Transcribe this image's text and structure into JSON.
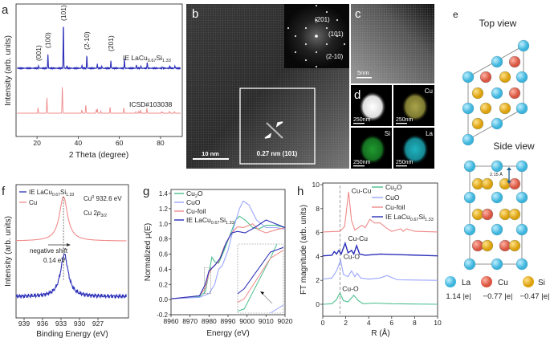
{
  "panel_labels": {
    "a": "a",
    "b": "b",
    "c": "c",
    "d": "d",
    "e": "e",
    "f": "f",
    "g": "g",
    "h": "h"
  },
  "material": {
    "base": "IE LaCu",
    "sub1": "0.67",
    "mid": "Si",
    "sub2": "1.33"
  },
  "colors": {
    "blue": "#2b2fb8",
    "red": "#f08a8a",
    "green": "#4cbf8f",
    "lightblue": "#9aa6ff",
    "la": "#5cc8e8",
    "cu": "#e8705e",
    "si": "#f0b822"
  },
  "panel_b": {
    "scale_bar": "10 nm",
    "d_spacing": "0.27 nm (101)",
    "fft_labels": [
      "(201)",
      "(101)",
      "(2-10)"
    ]
  },
  "panel_c": {
    "scale_bar": "5nm"
  },
  "panel_d": {
    "tiles": [
      {
        "element": "",
        "scale": "250nm"
      },
      {
        "element": "Cu",
        "scale": "250nm"
      },
      {
        "element": "Si",
        "scale": "250nm"
      },
      {
        "element": "La",
        "scale": "250nm"
      }
    ]
  },
  "panel_e": {
    "top_view": "Top view",
    "side_view": "Side view",
    "distance": "2.15 Å",
    "legend": [
      {
        "element": "La",
        "charge": "1.14 |e|"
      },
      {
        "element": "Cu",
        "charge": "−0.77 |e|"
      },
      {
        "element": "Si",
        "charge": "−0.47 |e|"
      }
    ]
  },
  "chart_data": [
    {
      "id": "a",
      "type": "line",
      "xlabel": "2 Theta (degree)",
      "ylabel": "Intensity (arb. units)",
      "xlim": [
        10,
        90
      ],
      "xticks": [
        20,
        40,
        60,
        80
      ],
      "series": [
        {
          "name": "IE LaCu0.67Si1.33",
          "color": "#2b2fb8",
          "peaks": [
            [
              20.8,
              5
            ],
            [
              25.3,
              30
            ],
            [
              32.8,
              100
            ],
            [
              34.5,
              5
            ],
            [
              41.8,
              6
            ],
            [
              44.2,
              28
            ],
            [
              49.3,
              9
            ],
            [
              51.5,
              4
            ],
            [
              55.9,
              16
            ],
            [
              62.5,
              20
            ],
            [
              68.3,
              7
            ],
            [
              70.5,
              5
            ],
            [
              73.6,
              13
            ],
            [
              81,
              3
            ],
            [
              84.5,
              5
            ],
            [
              87,
              5
            ]
          ]
        },
        {
          "name": "ICSD#103038",
          "color": "#f08a8a",
          "peaks": [
            [
              20.5,
              20
            ],
            [
              24.8,
              57
            ],
            [
              32.3,
              100
            ],
            [
              41.8,
              12
            ],
            [
              43.7,
              30
            ],
            [
              48.8,
              13
            ],
            [
              49.3,
              16
            ],
            [
              51,
              8
            ],
            [
              55.5,
              23
            ],
            [
              62.2,
              20
            ],
            [
              68,
              6
            ],
            [
              69.5,
              8
            ],
            [
              70.4,
              10
            ],
            [
              73.4,
              18
            ],
            [
              80.5,
              5
            ],
            [
              81,
              4
            ],
            [
              84.3,
              7
            ],
            [
              86.8,
              6
            ]
          ]
        }
      ],
      "annotations": [
        "(001)",
        "(100)",
        "(101)",
        "(2-10)",
        "(201)"
      ],
      "annotation_x": [
        20.8,
        25.3,
        32.8,
        44.2,
        55.9
      ],
      "legend_icsd": "ICSD#103038"
    },
    {
      "id": "f",
      "type": "line",
      "xlabel": "Binding Energy (eV)",
      "ylabel": "Intensity (arb. units)",
      "xlim": [
        940.3,
        922.3
      ],
      "xticks": [
        939,
        936,
        933,
        930,
        927
      ],
      "ylim": [
        0,
        3
      ],
      "series": [
        {
          "name": "IE LaCu0.67Si1.33",
          "color": "#2b2fb8",
          "center": 932.46,
          "hwhm": 0.75,
          "baseline": 0.48,
          "amplitude": 0.95,
          "noisy": true
        },
        {
          "name": "Cu",
          "color": "#f08a8a",
          "center": 932.6,
          "hwhm": 0.8,
          "baseline": 1.73,
          "amplitude": 1.0,
          "noisy": false
        }
      ],
      "annotations": {
        "peak": "Cu",
        "peak_sup": "0",
        "peak_val": " 932.6 eV",
        "orbital": "Cu 2",
        "orbital_p": "p",
        "orbital_sub": "3/2",
        "shift1": "negative shift",
        "shift2": "0.14 eV"
      }
    },
    {
      "id": "g",
      "type": "line",
      "xlabel": "Energy (eV)",
      "ylabel": "Normalized μ(E)",
      "xlim": [
        8960,
        9020
      ],
      "ylim": [
        -0.2,
        1.4
      ],
      "xticks": [
        8960,
        8970,
        8980,
        8990,
        9000,
        9010,
        9020
      ],
      "yticks": [
        -0.2,
        0.0,
        0.2,
        0.4,
        0.6,
        0.8,
        1.0,
        1.2,
        1.4
      ],
      "series": [
        {
          "name": "Cu2O",
          "color": "#4cbf8f",
          "points": [
            [
              8960,
              0.01
            ],
            [
              8975,
              0.04
            ],
            [
              8978,
              0.1
            ],
            [
              8980,
              0.35
            ],
            [
              8981.5,
              0.56
            ],
            [
              8983,
              0.5
            ],
            [
              8985,
              0.48
            ],
            [
              8988,
              0.65
            ],
            [
              8991,
              0.85
            ],
            [
              8994,
              1.05
            ],
            [
              8996,
              1.1
            ],
            [
              8999,
              1.05
            ],
            [
              9003,
              0.95
            ],
            [
              9006,
              0.93
            ],
            [
              9010,
              0.98
            ],
            [
              9015,
              0.98
            ],
            [
              9020,
              0.95
            ]
          ]
        },
        {
          "name": "CuO",
          "color": "#9aa6ff",
          "points": [
            [
              8960,
              0.01
            ],
            [
              8975,
              0.03
            ],
            [
              8980,
              0.08
            ],
            [
              8983,
              0.2
            ],
            [
              8985,
              0.4
            ],
            [
              8987,
              0.45
            ],
            [
              8990,
              0.65
            ],
            [
              8993,
              0.95
            ],
            [
              8996,
              1.2
            ],
            [
              8998,
              1.3
            ],
            [
              9001,
              1.25
            ],
            [
              9005,
              1.05
            ],
            [
              9010,
              0.95
            ],
            [
              9015,
              0.95
            ],
            [
              9020,
              0.93
            ]
          ]
        },
        {
          "name": "Cu-foil",
          "color": "#f08a8a",
          "points": [
            [
              8960,
              0.01
            ],
            [
              8975,
              0.05
            ],
            [
              8978,
              0.15
            ],
            [
              8980,
              0.35
            ],
            [
              8982,
              0.43
            ],
            [
              8985,
              0.5
            ],
            [
              8988,
              0.7
            ],
            [
              8992,
              0.88
            ],
            [
              8995,
              0.96
            ],
            [
              8998,
              0.95
            ],
            [
              9003,
              1.0
            ],
            [
              9006,
              0.92
            ],
            [
              9010,
              0.88
            ],
            [
              9015,
              0.92
            ],
            [
              9020,
              0.95
            ]
          ]
        },
        {
          "name": "IE LaCu0.67Si1.33",
          "color": "#2b2fb8",
          "points": [
            [
              8960,
              0.01
            ],
            [
              8975,
              0.05
            ],
            [
              8978,
              0.2
            ],
            [
              8980,
              0.38
            ],
            [
              8983,
              0.45
            ],
            [
              8986,
              0.55
            ],
            [
              8989,
              0.75
            ],
            [
              8992,
              0.88
            ],
            [
              8995,
              0.9
            ],
            [
              8999,
              0.88
            ],
            [
              9004,
              0.95
            ],
            [
              9010,
              1.05
            ],
            [
              9015,
              1.0
            ],
            [
              9020,
              0.95
            ]
          ]
        }
      ],
      "inset": {
        "xlim": [
          8977.5,
          8981
        ],
        "ylim": [
          0.08,
          0.42
        ]
      },
      "legend": [
        {
          "base": "Cu",
          "sub": "2",
          "rest": "O"
        },
        {
          "base": "CuO",
          "sub": "",
          "rest": ""
        },
        {
          "base": "Cu-foil",
          "sub": "",
          "rest": ""
        }
      ]
    },
    {
      "id": "h",
      "type": "line",
      "xlabel": "R (Å)",
      "ylabel": "FT magnitude (arb. units)",
      "xlim": [
        0,
        10
      ],
      "ylim": [
        -1,
        10
      ],
      "xticks": [
        0,
        2,
        4,
        6,
        8,
        10
      ],
      "yticks": [
        0,
        2,
        4,
        6,
        8,
        10
      ],
      "series": [
        {
          "name": "Cu2O",
          "color": "#4cbf8f",
          "points": [
            [
              0,
              0
            ],
            [
              0.8,
              0.05
            ],
            [
              1.2,
              0.4
            ],
            [
              1.5,
              0.95
            ],
            [
              1.8,
              0.3
            ],
            [
              2.2,
              0.2
            ],
            [
              2.7,
              0.75
            ],
            [
              3.1,
              0.3
            ],
            [
              3.5,
              0.05
            ],
            [
              4.5,
              0.1
            ],
            [
              6,
              0.05
            ],
            [
              10,
              0
            ]
          ]
        },
        {
          "name": "CuO",
          "color": "#9aa6ff",
          "points": [
            [
              0,
              2.1
            ],
            [
              0.8,
              2.2
            ],
            [
              1.2,
              2.8
            ],
            [
              1.55,
              3.7
            ],
            [
              1.8,
              2.5
            ],
            [
              2.2,
              2.3
            ],
            [
              2.5,
              2.8
            ],
            [
              2.8,
              2.3
            ],
            [
              3,
              2.6
            ],
            [
              3.3,
              2.2
            ],
            [
              4,
              2.1
            ],
            [
              5,
              2.2
            ],
            [
              5.6,
              2.4
            ],
            [
              6.5,
              2.05
            ],
            [
              10,
              2
            ]
          ]
        },
        {
          "name": "Cu-foil",
          "color": "#f08a8a",
          "points": [
            [
              0,
              6.05
            ],
            [
              1.5,
              6.1
            ],
            [
              1.9,
              6.5
            ],
            [
              2.25,
              9.4
            ],
            [
              2.5,
              7
            ],
            [
              2.8,
              6.2
            ],
            [
              3.4,
              6.6
            ],
            [
              3.7,
              6.4
            ],
            [
              4.1,
              7.1
            ],
            [
              4.5,
              6.8
            ],
            [
              5,
              6.8
            ],
            [
              5.5,
              6.4
            ],
            [
              6,
              6.1
            ],
            [
              6.8,
              6.3
            ],
            [
              7,
              6.1
            ],
            [
              7.3,
              6.3
            ],
            [
              8,
              6.1
            ],
            [
              10,
              6.05
            ]
          ]
        },
        {
          "name": "IE LaCu0.67Si1.33",
          "color": "#2b2fb8",
          "points": [
            [
              0,
              4.05
            ],
            [
              0.8,
              4.1
            ],
            [
              1.0,
              4.4
            ],
            [
              1.2,
              4.2
            ],
            [
              1.4,
              4.5
            ],
            [
              1.6,
              4.2
            ],
            [
              1.95,
              5.1
            ],
            [
              2.2,
              4.3
            ],
            [
              2.5,
              4.5
            ],
            [
              2.7,
              4.2
            ],
            [
              2.95,
              4.9
            ],
            [
              3.2,
              4.2
            ],
            [
              3.7,
              4.1
            ],
            [
              5,
              4.2
            ],
            [
              10,
              4.05
            ]
          ]
        }
      ],
      "dashed_line_x": 1.5,
      "annotations": [
        {
          "text": "Cu-Cu",
          "x": 2.5,
          "y": 9.3
        },
        {
          "text": "Cu-Cu",
          "x": 2.2,
          "y": 5.3
        },
        {
          "text": "Cu-O",
          "x": 1.8,
          "y": 3.8
        },
        {
          "text": "Cu-O",
          "x": 1.7,
          "y": 1.1
        }
      ],
      "legend": [
        {
          "base": "Cu",
          "sub": "2",
          "rest": "O"
        },
        {
          "base": "CuO",
          "sub": "",
          "rest": ""
        },
        {
          "base": "Cu-foil",
          "sub": "",
          "rest": ""
        }
      ]
    }
  ]
}
